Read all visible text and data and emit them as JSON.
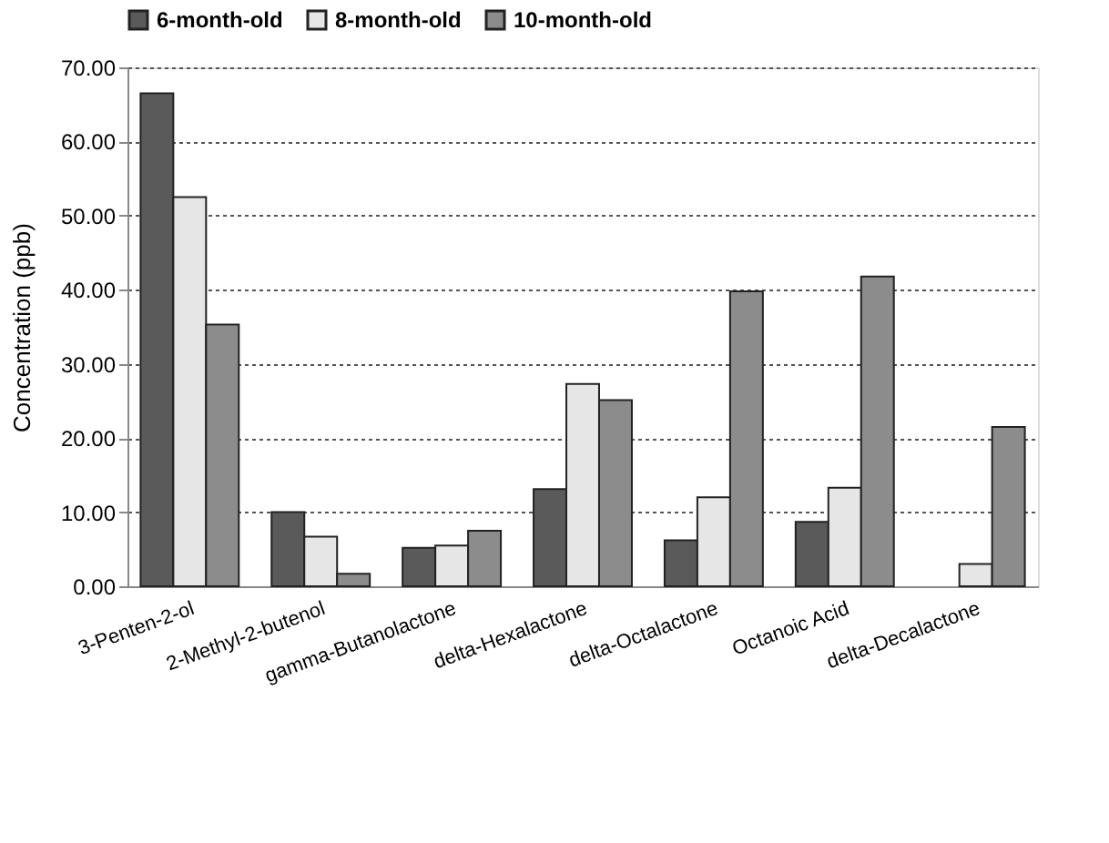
{
  "chart_data": {
    "type": "bar",
    "ylabel": "Concentration (ppb)",
    "categories": [
      "3-Penten-2-ol",
      "2-Methyl-2-butenol",
      "gamma-Butanolactone",
      "delta-Hexalactone",
      "delta-Octalactone",
      "Octanoic Acid",
      "delta-Decalactone"
    ],
    "series": [
      {
        "name": "6-month-old",
        "color": "#5a5a5a",
        "values": [
          66.5,
          10.0,
          5.2,
          13.1,
          6.2,
          8.7,
          null
        ]
      },
      {
        "name": "8-month-old",
        "color": "#e6e6e6",
        "values": [
          52.5,
          6.7,
          5.5,
          27.3,
          12.0,
          13.3,
          3.0
        ]
      },
      {
        "name": "10-month-old",
        "color": "#8c8c8c",
        "values": [
          35.3,
          1.7,
          7.5,
          25.1,
          39.8,
          41.8,
          21.5
        ]
      }
    ],
    "ylim": [
      0,
      70
    ],
    "yticks": [
      {
        "value": 0,
        "label": "0.00"
      },
      {
        "value": 10,
        "label": "10.00"
      },
      {
        "value": 20,
        "label": "20.00"
      },
      {
        "value": 30,
        "label": "30.00"
      },
      {
        "value": 40,
        "label": "40.00"
      },
      {
        "value": 50,
        "label": "50.00"
      },
      {
        "value": 60,
        "label": "60.00"
      },
      {
        "value": 70,
        "label": "70.00"
      }
    ],
    "grid": "y",
    "legend": "top"
  }
}
